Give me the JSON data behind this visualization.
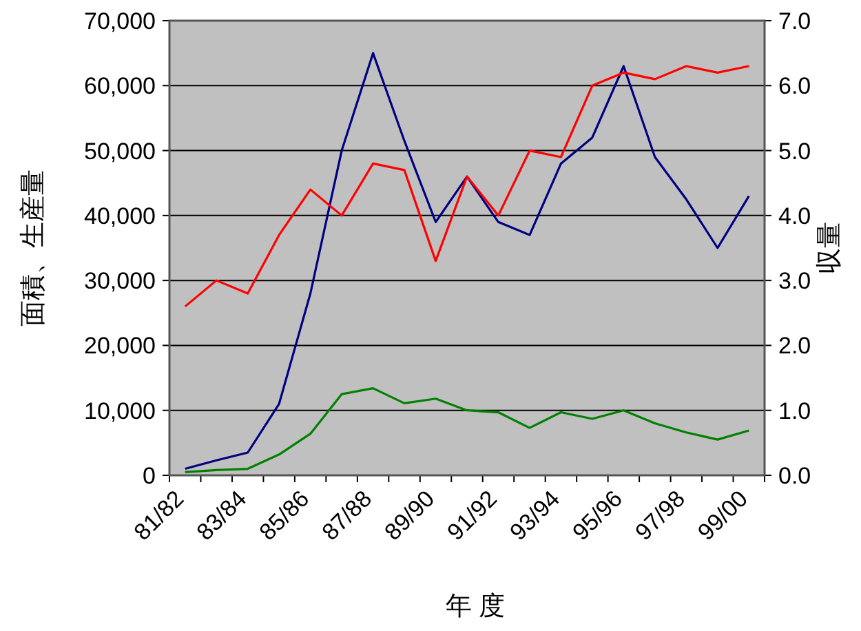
{
  "chart_data": {
    "type": "line",
    "xlabel": "年 度",
    "ylabel": "面積、生産量",
    "y2label": "収量",
    "categories": [
      "81/82",
      null,
      "83/84",
      null,
      "85/86",
      null,
      "87/88",
      null,
      "89/90",
      null,
      "91/92",
      null,
      "93/94",
      null,
      "95/96",
      null,
      "97/98",
      null,
      "99/00"
    ],
    "series": [
      {
        "color": "#000080",
        "values": [
          1000,
          2300,
          3500,
          11000,
          28000,
          50000,
          65000,
          51500,
          39000,
          46000,
          39000,
          37000,
          48000,
          52000,
          63000,
          49000,
          42500,
          35000,
          43000
        ]
      },
      {
        "color": "#ff0000",
        "axis": "y2",
        "values": [
          2.6,
          3.0,
          2.8,
          3.7,
          4.4,
          4.0,
          4.8,
          4.7,
          3.3,
          4.6,
          4.0,
          5.0,
          4.9,
          6.0,
          6.2,
          6.1,
          6.3,
          6.2,
          6.3
        ]
      },
      {
        "color": "#008000",
        "values": [
          500,
          800,
          1000,
          3200,
          6400,
          12500,
          13400,
          11100,
          11800,
          10000,
          9700,
          7300,
          9700,
          8700,
          10000,
          8000,
          6600,
          5500,
          6900
        ]
      }
    ],
    "ylim": [
      0,
      70000
    ],
    "yticks": [
      {
        "value": 0,
        "label": "0"
      },
      {
        "value": 10000,
        "label": "10,000"
      },
      {
        "value": 20000,
        "label": "20,000"
      },
      {
        "value": 30000,
        "label": "30,000"
      },
      {
        "value": 40000,
        "label": "40,000"
      },
      {
        "value": 50000,
        "label": "50,000"
      },
      {
        "value": 60000,
        "label": "60,000"
      },
      {
        "value": 70000,
        "label": "70,000"
      }
    ],
    "y2lim": [
      0,
      7
    ],
    "y2ticks": [
      {
        "value": 0,
        "label": "0.0"
      },
      {
        "value": 1,
        "label": "1.0"
      },
      {
        "value": 2,
        "label": "2.0"
      },
      {
        "value": 3,
        "label": "3.0"
      },
      {
        "value": 4,
        "label": "4.0"
      },
      {
        "value": 5,
        "label": "5.0"
      },
      {
        "value": 6,
        "label": "6.0"
      },
      {
        "value": 7,
        "label": "7.0"
      }
    ],
    "grid": "y",
    "marker": "none",
    "line_style": "solid"
  }
}
